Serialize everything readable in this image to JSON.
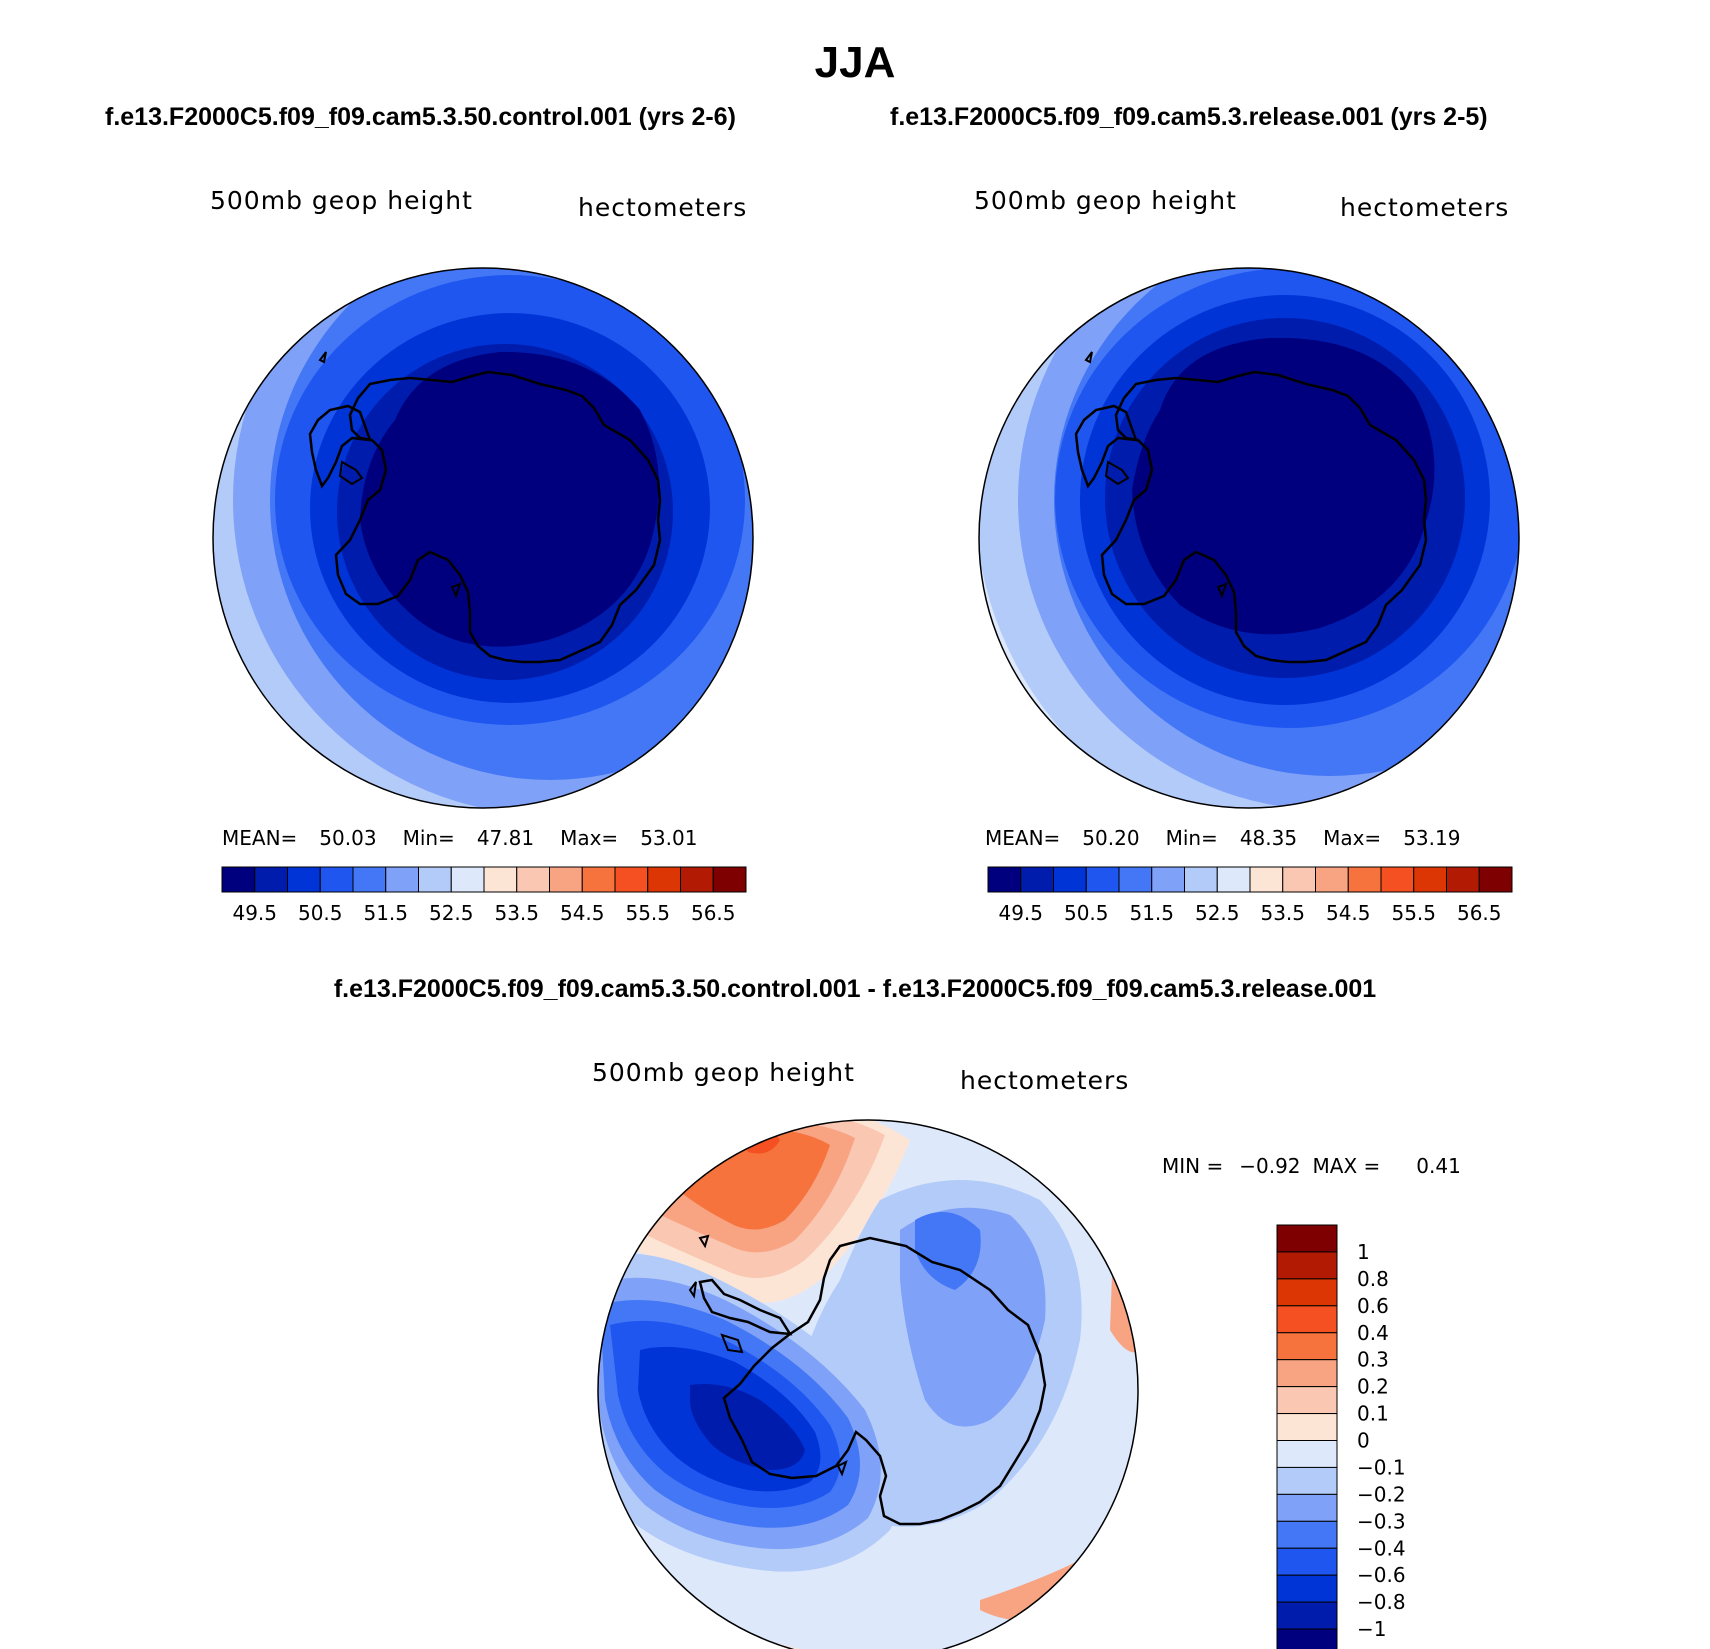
{
  "title": "JJA",
  "panels": [
    {
      "case_title": "f.e13.F2000C5.f09_f09.cam5.3.50.control.001 (yrs 2-6)",
      "variable": "500mb geop height",
      "units": "hectometers",
      "stats": {
        "mean_label": "MEAN=",
        "mean": "50.03",
        "min_label": "Min=",
        "min": "47.81",
        "max_label": "Max=",
        "max": "53.01"
      }
    },
    {
      "case_title": "f.e13.F2000C5.f09_f09.cam5.3.release.001 (yrs 2-5)",
      "variable": "500mb geop height",
      "units": "hectometers",
      "stats": {
        "mean_label": "MEAN=",
        "mean": "50.20",
        "min_label": "Min=",
        "min": "48.35",
        "max_label": "Max=",
        "max": "53.19"
      }
    },
    {
      "case_title": "f.e13.F2000C5.f09_f09.cam5.3.50.control.001 - f.e13.F2000C5.f09_f09.cam5.3.release.001",
      "variable": "500mb geop height",
      "units": "hectometers",
      "stats": {
        "min_label": "MIN =",
        "min": "−0.92",
        "max_label": "MAX =",
        "max": "0.41"
      }
    }
  ],
  "colorbars": {
    "abs": {
      "colors": [
        "#00007f",
        "#001cad",
        "#0034d6",
        "#1f56f0",
        "#4477f5",
        "#7fa1f7",
        "#b3cbf9",
        "#dde9fb",
        "#fde5d6",
        "#fac8b2",
        "#f8a483",
        "#f6733d",
        "#f45021",
        "#dd3605",
        "#b31a03",
        "#7f0000"
      ],
      "labels": [
        "49.5",
        "50.5",
        "51.5",
        "52.5",
        "53.5",
        "54.5",
        "55.5",
        "56.5"
      ]
    },
    "diff": {
      "colors": [
        "#7f0000",
        "#b31a03",
        "#dd3605",
        "#f45021",
        "#f6733d",
        "#f8a483",
        "#fac8b2",
        "#fde5d6",
        "#dde9fb",
        "#b3cbf9",
        "#7fa1f7",
        "#4477f5",
        "#1f56f0",
        "#0034d6",
        "#001cad",
        "#00007f"
      ],
      "labels": [
        "1",
        "0.8",
        "0.6",
        "0.4",
        "0.3",
        "0.2",
        "0.1",
        "0",
        "−0.1",
        "−0.2",
        "−0.3",
        "−0.4",
        "−0.6",
        "−0.8",
        "−1"
      ]
    }
  }
}
